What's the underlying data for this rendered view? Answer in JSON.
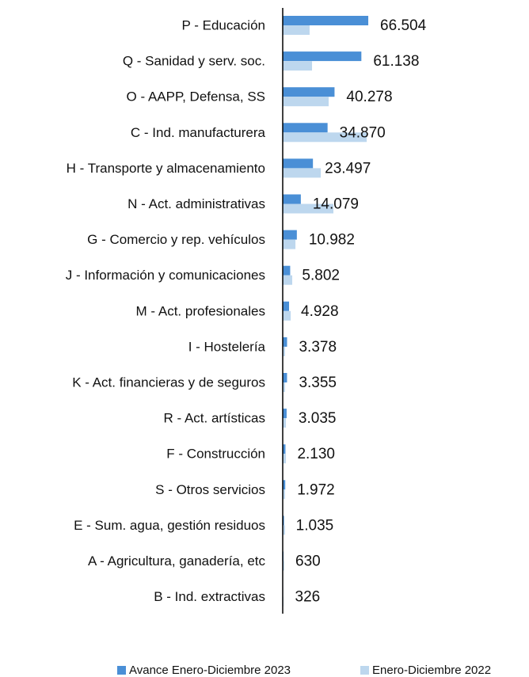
{
  "chart_data": {
    "type": "bar",
    "orientation": "horizontal",
    "categories": [
      "P - Educación",
      "Q - Sanidad y serv. soc.",
      "O - AAPP, Defensa, SS",
      "C - Ind. manufacturera",
      "H - Transporte y almacenamiento",
      "N - Act. administrativas",
      "G - Comercio y rep. vehículos",
      "J - Información y comunicaciones",
      "M - Act. profesionales",
      "I - Hostelería",
      "K - Act. financieras y de seguros",
      "R - Act. artísticas",
      "F - Construcción",
      "S - Otros servicios",
      "E - Sum. agua, gestión residuos",
      "A - Agricultura, ganadería, etc",
      "B - Ind. extractivas"
    ],
    "series": [
      {
        "name": "Avance Enero-Diciembre 2023",
        "color": "#4a8fd6",
        "values": [
          66504,
          61138,
          40278,
          34870,
          23497,
          14079,
          10982,
          5802,
          4928,
          3378,
          3355,
          3035,
          2130,
          1972,
          1035,
          630,
          326
        ],
        "value_labels": [
          "66.504",
          "61.138",
          "40.278",
          "34.870",
          "23.497",
          "14.079",
          "10.982",
          "5.802",
          "4.928",
          "3.378",
          "3.355",
          "3.035",
          "2.130",
          "1.972",
          "1.035",
          "630",
          "326"
        ]
      },
      {
        "name": "Enero-Diciembre 2022",
        "color": "#bdd7ee",
        "values": [
          20900,
          22800,
          35700,
          65300,
          29600,
          39400,
          9900,
          7400,
          6200,
          1800,
          1800,
          2500,
          2500,
          1800,
          1800,
          1200,
          600
        ]
      }
    ],
    "xlim": [
      0,
      70000
    ]
  }
}
